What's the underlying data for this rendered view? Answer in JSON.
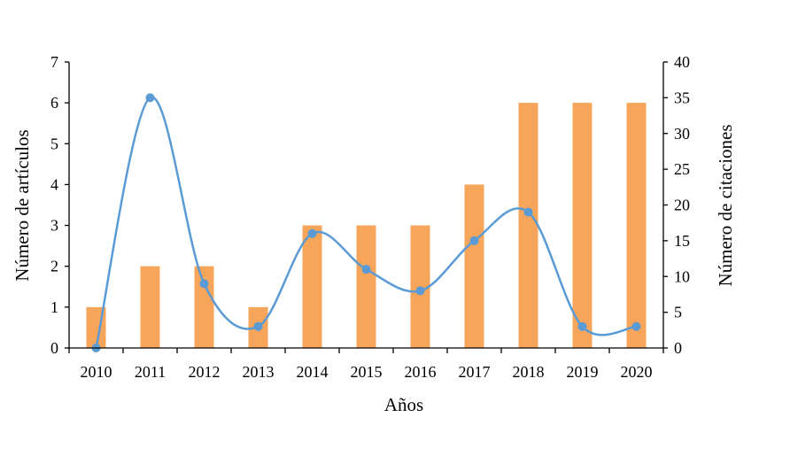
{
  "chart_data": {
    "type": "bar+line",
    "categories": [
      "2010",
      "2011",
      "2012",
      "2013",
      "2014",
      "2015",
      "2016",
      "2017",
      "2018",
      "2019",
      "2020"
    ],
    "xlabel": "Años",
    "y_left": {
      "label": "Número de artículos",
      "range": [
        0,
        7
      ],
      "ticks": [
        "0",
        "1",
        "2",
        "3",
        "4",
        "5",
        "6",
        "7"
      ]
    },
    "y_right": {
      "label": "Número de citaciones",
      "range": [
        0,
        40
      ],
      "ticks": [
        "0",
        "5",
        "10",
        "15",
        "20",
        "25",
        "30",
        "35",
        "40"
      ]
    },
    "series": [
      {
        "type": "bar",
        "axis": "left",
        "color": "#F6A55A",
        "values": [
          1,
          2,
          2,
          1,
          3,
          3,
          3,
          4,
          6,
          6,
          6
        ]
      },
      {
        "type": "line",
        "axis": "right",
        "color": "#5B9BD5",
        "smooth": true,
        "values": [
          0,
          35,
          9,
          3,
          16,
          11,
          8,
          15,
          19,
          3,
          3
        ]
      }
    ],
    "grid": false,
    "legend": "none"
  }
}
